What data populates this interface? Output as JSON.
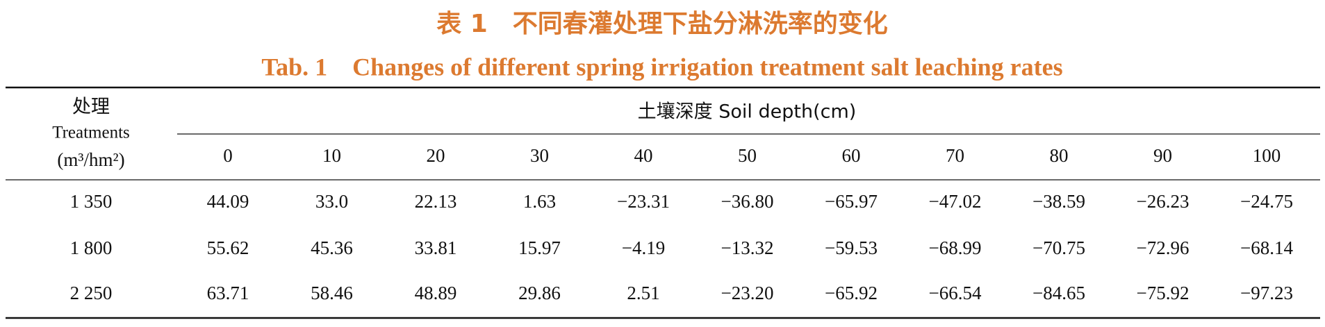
{
  "title_cn": "表 1　不同春灌处理下盐分淋洗率的变化",
  "title_en": "Tab. 1　Changes of different spring irrigation treatment salt leaching rates",
  "table": {
    "treatment_header": [
      "处理",
      "Treatments",
      "(m³/hm²)"
    ],
    "depth_header": "土壤深度 Soil depth(cm)",
    "depths": [
      "0",
      "10",
      "20",
      "30",
      "40",
      "50",
      "60",
      "70",
      "80",
      "90",
      "100"
    ],
    "rows": [
      [
        "1 350",
        "44.09",
        "33.0",
        "22.13",
        "1.63",
        "−23.31",
        "−36.80",
        "−65.97",
        "−47.02",
        "−38.59",
        "−26.23",
        "−24.75"
      ],
      [
        "1 800",
        "55.62",
        "45.36",
        "33.81",
        "15.97",
        "−4.19",
        "−13.32",
        "−59.53",
        "−68.99",
        "−70.75",
        "−72.96",
        "−68.14"
      ],
      [
        "2 250",
        "63.71",
        "58.46",
        "48.89",
        "29.86",
        "2.51",
        "−23.20",
        "−65.92",
        "−66.54",
        "−84.65",
        "−75.92",
        "−97.23"
      ]
    ]
  }
}
